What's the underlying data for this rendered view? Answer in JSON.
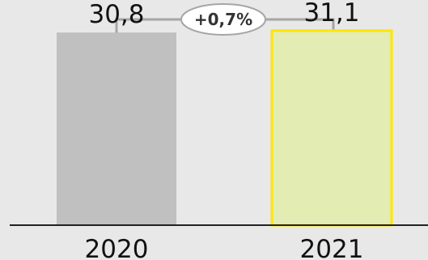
{
  "chart_data": {
    "type": "bar",
    "categories": [
      "2020",
      "2021"
    ],
    "values": [
      30.8,
      31.1
    ],
    "value_labels": [
      "30,8",
      "31,1"
    ],
    "title": "",
    "xlabel": "",
    "ylabel": "",
    "ylim": [
      0,
      36
    ],
    "grid": false,
    "legend": "none",
    "change_annotation": {
      "text": "+0,7%",
      "from": "2020",
      "to": "2021"
    },
    "colors": {
      "bar_2020_fill": "#c0c0c0",
      "bar_2021_fill": "#e2ecb3",
      "bar_2021_border": "#ffe600",
      "axis": "#222222",
      "connector": "#a6a6a6",
      "text": "#111111"
    }
  }
}
